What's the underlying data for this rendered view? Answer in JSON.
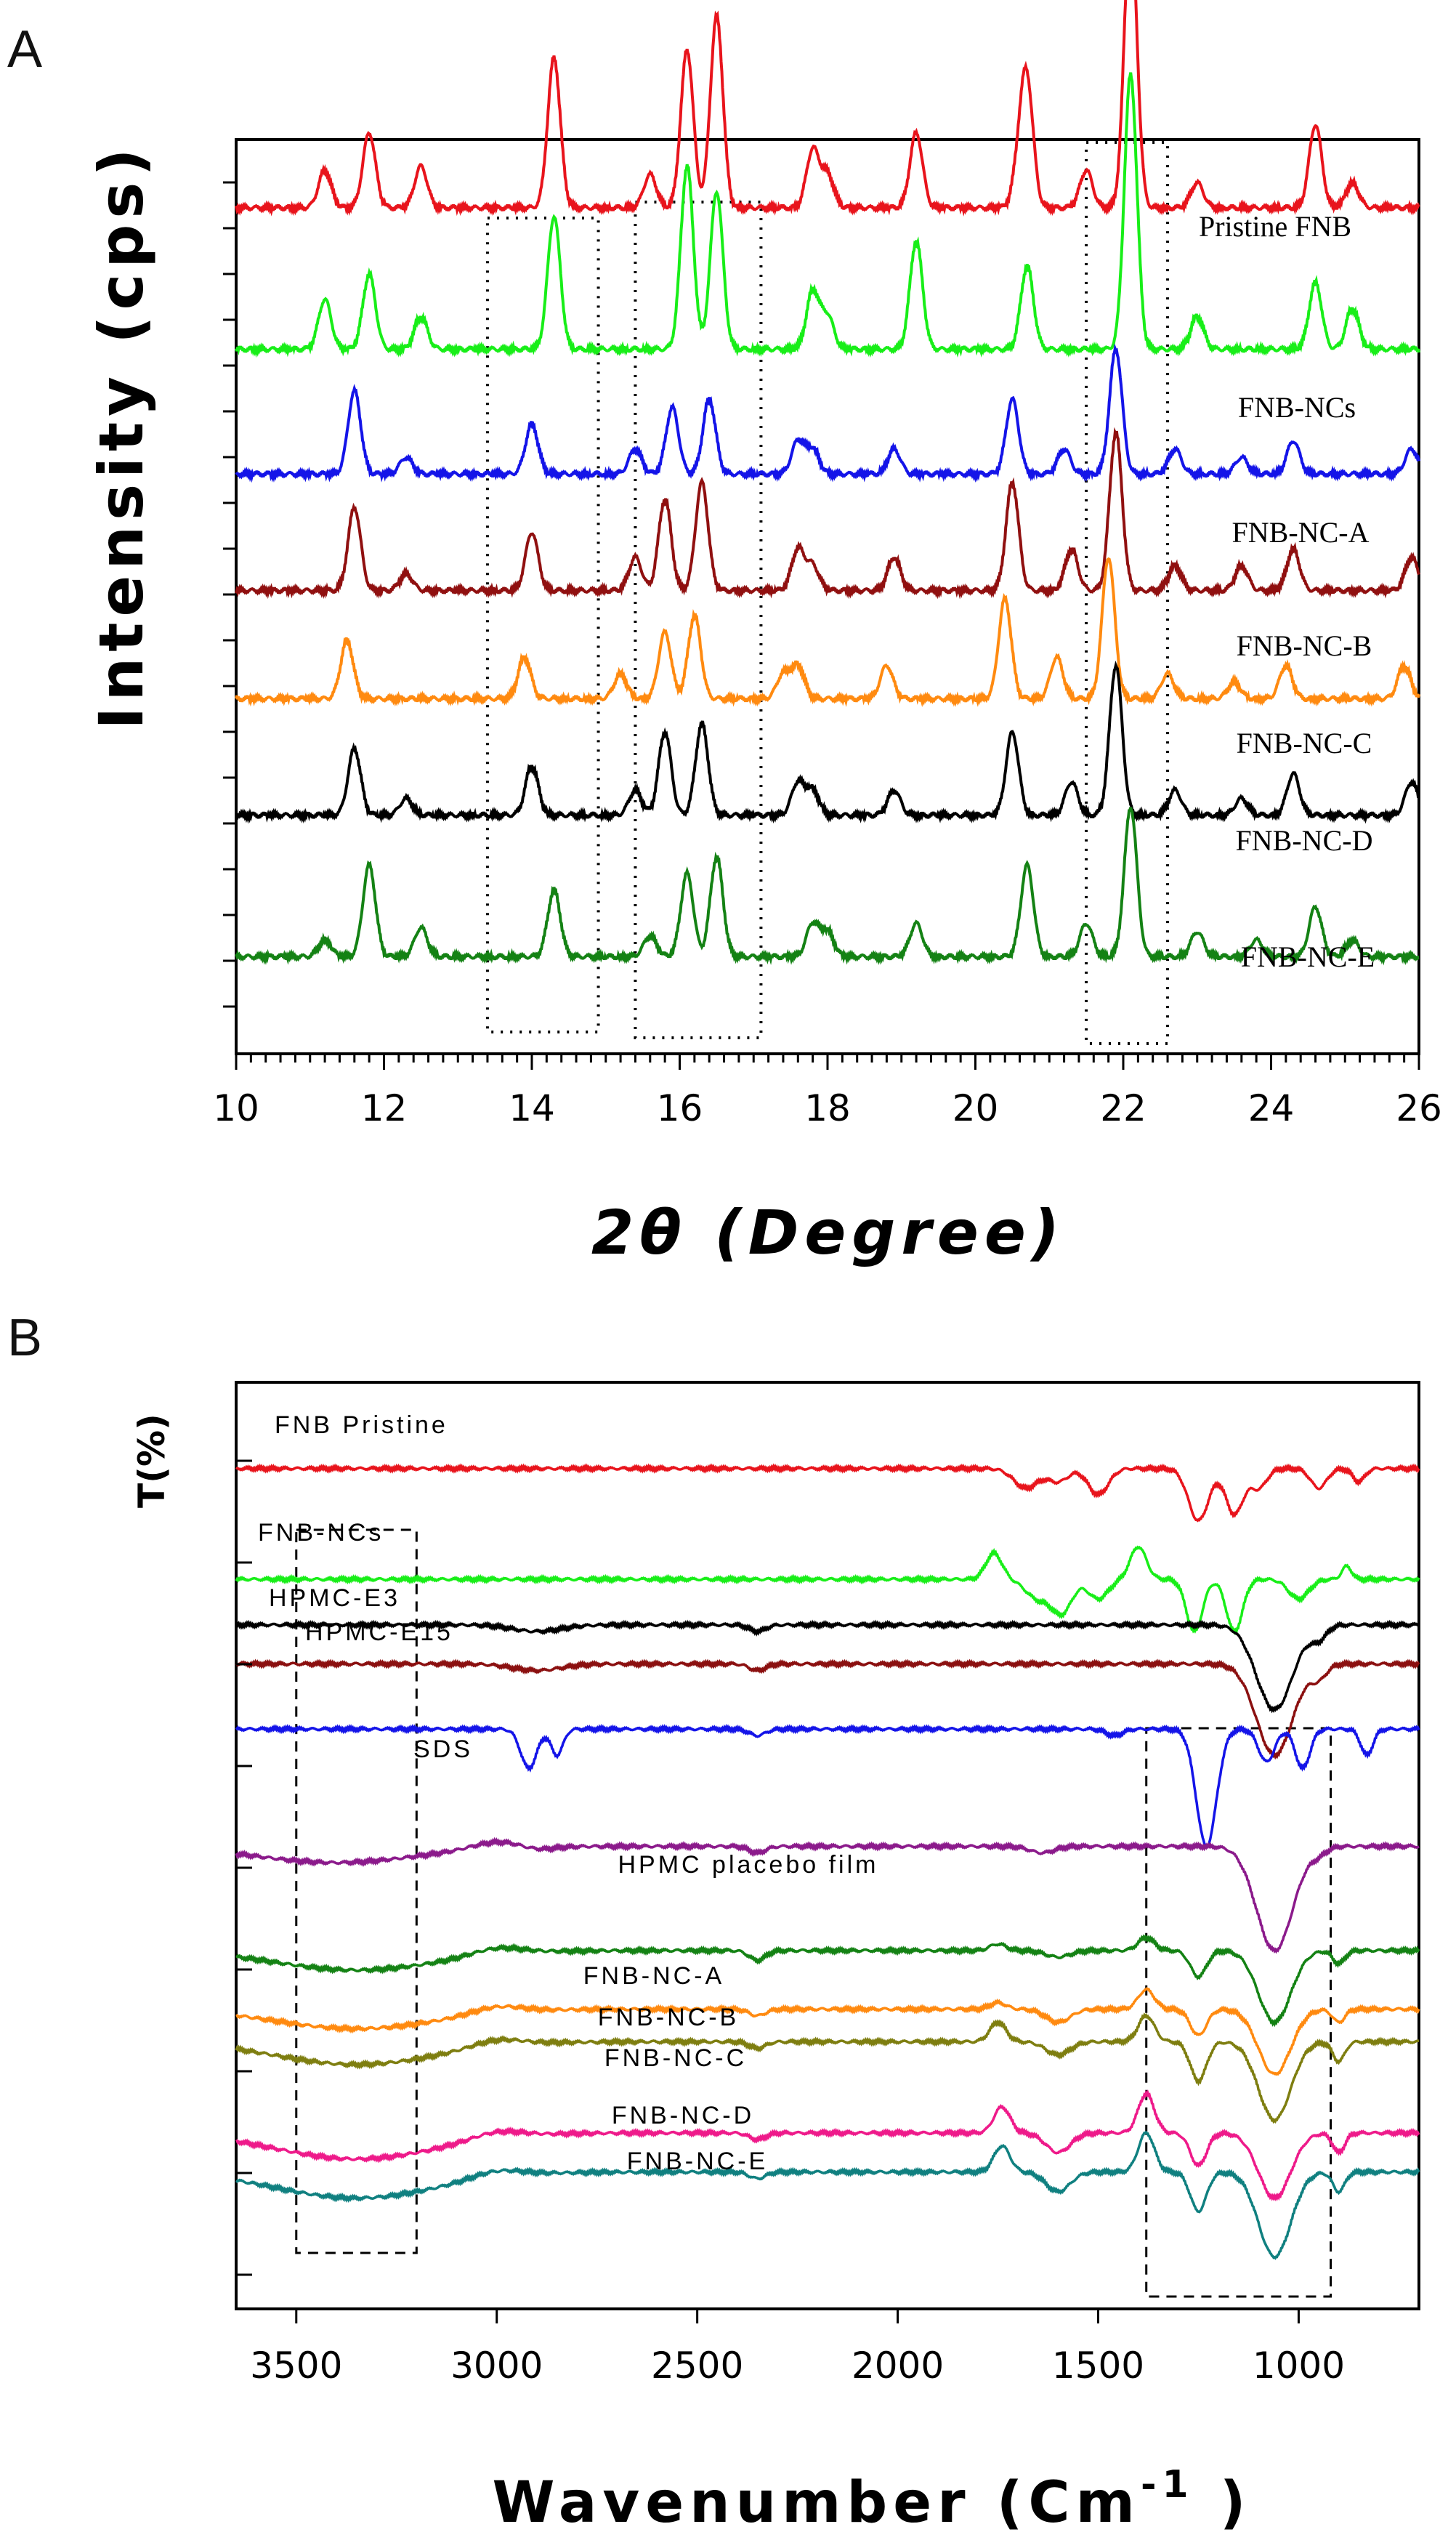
{
  "chart_data": [
    {
      "panel": "A",
      "type": "line",
      "title": "",
      "xlabel": "2θ (Degree)",
      "ylabel": "Intensity (cps)",
      "xlim": [
        10,
        26
      ],
      "xticks": [
        "10",
        "12",
        "14",
        "16",
        "18",
        "20",
        "22",
        "24",
        "26"
      ],
      "series": [
        {
          "name": "Pristine FNB",
          "color": "#e8141c",
          "baseline": 9.6,
          "peaks": [
            [
              11.2,
              0.45
            ],
            [
              11.8,
              0.9
            ],
            [
              12.5,
              0.5
            ],
            [
              14.3,
              1.8
            ],
            [
              15.6,
              0.4
            ],
            [
              16.1,
              1.9
            ],
            [
              16.5,
              2.3
            ],
            [
              17.8,
              0.7
            ],
            [
              18.0,
              0.4
            ],
            [
              19.2,
              0.9
            ],
            [
              20.6,
              0.5
            ],
            [
              20.7,
              1.4
            ],
            [
              21.5,
              0.45
            ],
            [
              22.1,
              3.5
            ],
            [
              23.0,
              0.3
            ],
            [
              24.6,
              1.0
            ],
            [
              25.1,
              0.3
            ]
          ]
        },
        {
          "name": "FNB-NCs",
          "color": "#18ee18",
          "baseline": 7.9,
          "peaks": [
            [
              11.2,
              0.6
            ],
            [
              11.8,
              0.9
            ],
            [
              12.5,
              0.4
            ],
            [
              14.3,
              1.6
            ],
            [
              16.1,
              2.2
            ],
            [
              16.5,
              1.9
            ],
            [
              17.8,
              0.7
            ],
            [
              18.0,
              0.4
            ],
            [
              19.2,
              1.3
            ],
            [
              20.7,
              1.0
            ],
            [
              22.1,
              3.3
            ],
            [
              23.0,
              0.4
            ],
            [
              24.6,
              0.8
            ],
            [
              25.1,
              0.5
            ]
          ]
        },
        {
          "name": "FNB-NC-A",
          "color": "#1414e8",
          "baseline": 6.4,
          "peaks": [
            [
              11.6,
              1.0
            ],
            [
              12.3,
              0.2
            ],
            [
              14.0,
              0.6
            ],
            [
              15.4,
              0.3
            ],
            [
              15.9,
              0.8
            ],
            [
              16.4,
              0.9
            ],
            [
              17.6,
              0.4
            ],
            [
              17.8,
              0.3
            ],
            [
              18.9,
              0.3
            ],
            [
              20.5,
              0.9
            ],
            [
              21.2,
              0.3
            ],
            [
              21.9,
              1.5
            ],
            [
              22.7,
              0.3
            ],
            [
              23.6,
              0.2
            ],
            [
              24.3,
              0.4
            ],
            [
              25.9,
              0.3
            ]
          ]
        },
        {
          "name": "FNB-NC-B",
          "color": "#901010",
          "baseline": 5.0,
          "peaks": [
            [
              11.6,
              1.0
            ],
            [
              12.3,
              0.2
            ],
            [
              14.0,
              0.7
            ],
            [
              15.4,
              0.4
            ],
            [
              15.8,
              1.1
            ],
            [
              16.3,
              1.3
            ],
            [
              17.6,
              0.5
            ],
            [
              17.8,
              0.3
            ],
            [
              18.9,
              0.4
            ],
            [
              20.5,
              1.3
            ],
            [
              21.3,
              0.5
            ],
            [
              21.9,
              1.9
            ],
            [
              22.7,
              0.3
            ],
            [
              23.6,
              0.3
            ],
            [
              24.3,
              0.5
            ],
            [
              25.9,
              0.4
            ]
          ]
        },
        {
          "name": "FNB-NC-C",
          "color": "#ff8a10",
          "baseline": 3.7,
          "peaks": [
            [
              11.5,
              0.7
            ],
            [
              13.9,
              0.5
            ],
            [
              15.2,
              0.3
            ],
            [
              15.8,
              0.8
            ],
            [
              16.2,
              1.0
            ],
            [
              17.4,
              0.3
            ],
            [
              17.6,
              0.4
            ],
            [
              18.8,
              0.4
            ],
            [
              20.4,
              1.2
            ],
            [
              21.1,
              0.5
            ],
            [
              21.8,
              1.7
            ],
            [
              22.6,
              0.3
            ],
            [
              23.5,
              0.2
            ],
            [
              24.2,
              0.4
            ],
            [
              25.8,
              0.4
            ]
          ]
        },
        {
          "name": "FNB-NC-D",
          "color": "#000000",
          "baseline": 2.3,
          "peaks": [
            [
              11.6,
              0.8
            ],
            [
              12.3,
              0.2
            ],
            [
              14.0,
              0.6
            ],
            [
              15.4,
              0.3
            ],
            [
              15.8,
              1.0
            ],
            [
              16.3,
              1.1
            ],
            [
              17.6,
              0.4
            ],
            [
              17.8,
              0.3
            ],
            [
              18.9,
              0.3
            ],
            [
              20.5,
              1.0
            ],
            [
              21.3,
              0.4
            ],
            [
              21.9,
              1.8
            ],
            [
              22.7,
              0.3
            ],
            [
              23.6,
              0.2
            ],
            [
              24.3,
              0.5
            ],
            [
              25.9,
              0.4
            ]
          ]
        },
        {
          "name": "FNB-NC-E",
          "color": "#148214",
          "baseline": 0.6,
          "peaks": [
            [
              11.2,
              0.2
            ],
            [
              11.8,
              1.1
            ],
            [
              12.5,
              0.35
            ],
            [
              14.3,
              0.8
            ],
            [
              15.6,
              0.25
            ],
            [
              16.1,
              1.0
            ],
            [
              16.5,
              1.2
            ],
            [
              17.8,
              0.4
            ],
            [
              18.0,
              0.3
            ],
            [
              19.2,
              0.4
            ],
            [
              20.7,
              1.1
            ],
            [
              21.5,
              0.4
            ],
            [
              22.1,
              1.8
            ],
            [
              23.0,
              0.3
            ],
            [
              23.8,
              0.2
            ],
            [
              24.6,
              0.6
            ],
            [
              25.1,
              0.2
            ]
          ]
        }
      ],
      "annotations": [
        "dotted box 13.4–14.9",
        "dotted box 15.4–17.1",
        "dotted box 21.5–22.6"
      ]
    },
    {
      "panel": "B",
      "type": "line",
      "title": "",
      "xlabel": "Wavenumber (Cm-1 )",
      "ylabel": "T(%)",
      "xlim": [
        3650,
        700
      ],
      "xticks": [
        "3500",
        "3000",
        "2500",
        "2000",
        "1500",
        "1000"
      ],
      "series": [
        {
          "name": "FNB Pristine",
          "color": "#e8141c",
          "baseline": 12.6,
          "features": [
            [
              1680,
              -0.3,
              30
            ],
            [
              1600,
              -0.2,
              25
            ],
            [
              1500,
              -0.4,
              25
            ],
            [
              1250,
              -0.8,
              25
            ],
            [
              1160,
              -0.7,
              22
            ],
            [
              1100,
              -0.3,
              20
            ],
            [
              950,
              -0.3,
              20
            ],
            [
              850,
              -0.2,
              15
            ]
          ]
        },
        {
          "name": "FNB-NCs",
          "color": "#18ee18",
          "baseline": 10.9,
          "features": [
            [
              1760,
              0.4,
              20
            ],
            [
              1650,
              -0.3,
              30
            ],
            [
              1590,
              -0.5,
              25
            ],
            [
              1500,
              -0.3,
              25
            ],
            [
              1400,
              0.5,
              20
            ],
            [
              1260,
              -0.8,
              20
            ],
            [
              1160,
              -0.8,
              20
            ],
            [
              1000,
              -0.3,
              25
            ],
            [
              880,
              0.2,
              12
            ]
          ]
        },
        {
          "name": "HPMC-E3",
          "color": "#000000",
          "baseline": 10.2,
          "features": [
            [
              2900,
              -0.1,
              60
            ],
            [
              2350,
              -0.1,
              20
            ],
            [
              1060,
              -1.3,
              45
            ],
            [
              950,
              -0.2,
              20
            ]
          ]
        },
        {
          "name": "HPMC-E15",
          "color": "#8b1010",
          "baseline": 9.6,
          "features": [
            [
              2900,
              -0.1,
              60
            ],
            [
              2350,
              -0.1,
              20
            ],
            [
              1060,
              -1.4,
              45
            ],
            [
              950,
              -0.2,
              20
            ]
          ]
        },
        {
          "name": "SDS",
          "color": "#1414e8",
          "baseline": 8.6,
          "features": [
            [
              2920,
              -0.6,
              20
            ],
            [
              2850,
              -0.4,
              15
            ],
            [
              2350,
              -0.1,
              20
            ],
            [
              1460,
              -0.1,
              20
            ],
            [
              1230,
              -1.8,
              25
            ],
            [
              1080,
              -0.5,
              20
            ],
            [
              990,
              -0.6,
              18
            ],
            [
              830,
              -0.4,
              15
            ]
          ]
        },
        {
          "name": "HPMC placebo film",
          "color": "#8b1a8b",
          "baseline": 6.8,
          "features": [
            [
              3400,
              -0.25,
              200
            ],
            [
              3000,
              0.1,
              60
            ],
            [
              2900,
              -0.05,
              40
            ],
            [
              2350,
              -0.1,
              20
            ],
            [
              1640,
              -0.1,
              30
            ],
            [
              1060,
              -1.6,
              45
            ],
            [
              950,
              -0.1,
              20
            ]
          ]
        },
        {
          "name": "FNB-NC-A",
          "color": "#148214",
          "baseline": 5.2,
          "features": [
            [
              3350,
              -0.3,
              200
            ],
            [
              3000,
              0.1,
              60
            ],
            [
              2350,
              -0.15,
              20
            ],
            [
              1750,
              0.1,
              20
            ],
            [
              1600,
              -0.1,
              30
            ],
            [
              1380,
              0.2,
              20
            ],
            [
              1250,
              -0.4,
              20
            ],
            [
              1060,
              -1.1,
              40
            ],
            [
              900,
              -0.2,
              15
            ]
          ]
        },
        {
          "name": "FNB-NC-B",
          "color": "#ff8a10",
          "baseline": 4.3,
          "features": [
            [
              3350,
              -0.3,
              200
            ],
            [
              3000,
              0.1,
              60
            ],
            [
              2350,
              -0.1,
              20
            ],
            [
              1750,
              0.1,
              20
            ],
            [
              1600,
              -0.2,
              30
            ],
            [
              1380,
              0.3,
              20
            ],
            [
              1250,
              -0.4,
              20
            ],
            [
              1060,
              -1.0,
              40
            ],
            [
              900,
              -0.2,
              15
            ]
          ]
        },
        {
          "name": "FNB-NC-C",
          "color": "#7e7e10",
          "baseline": 3.8,
          "features": [
            [
              3350,
              -0.35,
              200
            ],
            [
              3000,
              0.1,
              60
            ],
            [
              2350,
              -0.1,
              20
            ],
            [
              1750,
              0.3,
              20
            ],
            [
              1600,
              -0.2,
              30
            ],
            [
              1380,
              0.4,
              20
            ],
            [
              1250,
              -0.6,
              20
            ],
            [
              1060,
              -1.2,
              40
            ],
            [
              900,
              -0.3,
              15
            ]
          ]
        },
        {
          "name": "FNB-NC-D",
          "color": "#ee1a8a",
          "baseline": 2.4,
          "features": [
            [
              3350,
              -0.4,
              200
            ],
            [
              3000,
              0.1,
              60
            ],
            [
              2350,
              -0.1,
              20
            ],
            [
              1740,
              0.4,
              20
            ],
            [
              1600,
              -0.3,
              30
            ],
            [
              1380,
              0.6,
              20
            ],
            [
              1250,
              -0.5,
              20
            ],
            [
              1060,
              -1.0,
              40
            ],
            [
              900,
              -0.3,
              15
            ]
          ]
        },
        {
          "name": "FNB-NC-E",
          "color": "#108080",
          "baseline": 1.8,
          "features": [
            [
              3350,
              -0.4,
              200
            ],
            [
              3000,
              0.1,
              60
            ],
            [
              2350,
              -0.1,
              20
            ],
            [
              1740,
              0.4,
              20
            ],
            [
              1600,
              -0.3,
              30
            ],
            [
              1380,
              0.6,
              20
            ],
            [
              1250,
              -0.6,
              20
            ],
            [
              1060,
              -1.3,
              40
            ],
            [
              900,
              -0.3,
              15
            ]
          ]
        }
      ],
      "annotations": [
        "dashed box 3500–3200",
        "dashed box 1380–920"
      ]
    }
  ],
  "figure": {
    "panel_a_letter": "A",
    "panel_b_letter": "B",
    "a_ylabel": "Intensity (cps)",
    "a_xlabel": "2θ (Degree)",
    "b_ylabel": "T(%)",
    "b_xlabel_main": "Wavenumber (Cm",
    "b_xlabel_sup": "-1",
    "b_xlabel_end": " )"
  }
}
